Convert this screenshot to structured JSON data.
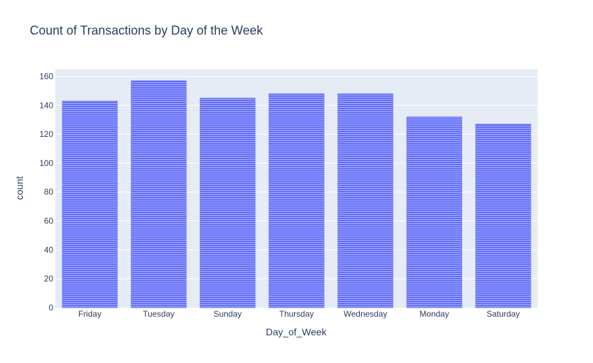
{
  "chart_data": {
    "type": "bar",
    "title": "Count of Transactions by Day of the Week",
    "xlabel": "Day_of_Week",
    "ylabel": "count",
    "categories": [
      "Friday",
      "Tuesday",
      "Sunday",
      "Thursday",
      "Wednesday",
      "Monday",
      "Saturday"
    ],
    "values": [
      143,
      157,
      145,
      148,
      148,
      132,
      127
    ],
    "ylim": [
      0,
      165
    ],
    "yticks": [
      0,
      20,
      40,
      60,
      80,
      100,
      120,
      140,
      160
    ],
    "grid": true,
    "legend": "none",
    "colors": {
      "bar": "#636efa",
      "plot_bg": "#e5ecf6",
      "grid": "#ffffff",
      "text": "#2a3f5f"
    }
  }
}
